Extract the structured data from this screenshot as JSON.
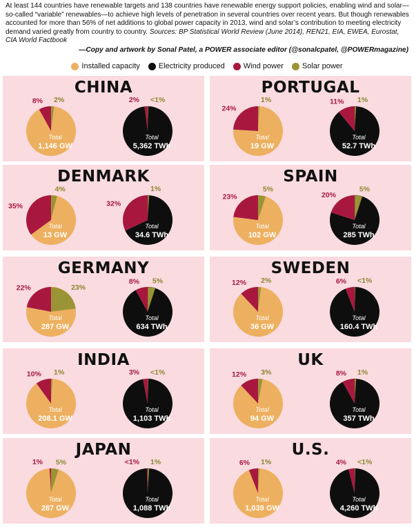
{
  "intro": {
    "text": "At least 144 countries have renewable targets and 138 countries have renewable energy support policies, enabling wind and solar—so-called “variable” renewables—to achieve high levels of penetration in several countries over recent years. But though renewables accounted for more than 56% of net additions to global power capacity in 2013, wind and solar’s contribution to meeting electricity demand varied greatly from country to country.",
    "sources": "Sources: BP Statistical World Review (June 2014), REN21, EIA, EWEA, Eurostat, CIA World Factbook",
    "credit": "—Copy and artwork by Sonal Patel, a POWER associate editor (@sonalcpatel, @POWERmagazine)"
  },
  "legend": [
    {
      "label": "Installed capacity",
      "color": "#edb060"
    },
    {
      "label": "Electricity produced",
      "color": "#0e0e0e"
    },
    {
      "label": "Wind power",
      "color": "#a8183e"
    },
    {
      "label": "Solar power",
      "color": "#9a9436"
    }
  ],
  "colors": {
    "capacity": "#edb060",
    "electricity": "#0e0e0e",
    "wind": "#a8183e",
    "solar": "#9a9436",
    "panel_bg": "#f9dbe0",
    "wind_label": "#a8183e",
    "solar_label": "#8d8730"
  },
  "total_label": "Total",
  "chart_data": [
    {
      "type": "pie",
      "title": "CHINA",
      "capacity": {
        "total": "1,146 GW",
        "wind": 8,
        "solar": 2,
        "wind_label": "8%",
        "solar_label": "2%"
      },
      "electricity": {
        "total": "5,362 TWh",
        "wind": 2,
        "solar": 0.5,
        "wind_label": "2%",
        "solar_label": "<1%"
      }
    },
    {
      "type": "pie",
      "title": "PORTUGAL",
      "capacity": {
        "total": "19 GW",
        "wind": 24,
        "solar": 1,
        "wind_label": "24%",
        "solar_label": "1%"
      },
      "electricity": {
        "total": "52.7 TWh",
        "wind": 11,
        "solar": 1,
        "wind_label": "11%",
        "solar_label": "1%"
      }
    },
    {
      "type": "pie",
      "title": "DENMARK",
      "capacity": {
        "total": "13 GW",
        "wind": 35,
        "solar": 4,
        "wind_label": "35%",
        "solar_label": "4%"
      },
      "electricity": {
        "total": "34.6 TWh",
        "wind": 32,
        "solar": 1,
        "wind_label": "32%",
        "solar_label": "1%"
      }
    },
    {
      "type": "pie",
      "title": "SPAIN",
      "capacity": {
        "total": "102 GW",
        "wind": 23,
        "solar": 5,
        "wind_label": "23%",
        "solar_label": "5%"
      },
      "electricity": {
        "total": "285 TWh",
        "wind": 20,
        "solar": 5,
        "wind_label": "20%",
        "solar_label": "5%"
      }
    },
    {
      "type": "pie",
      "title": "GERMANY",
      "capacity": {
        "total": "287 GW",
        "wind": 22,
        "solar": 23,
        "wind_label": "22%",
        "solar_label": "23%"
      },
      "electricity": {
        "total": "634 TWh",
        "wind": 8,
        "solar": 5,
        "wind_label": "8%",
        "solar_label": "5%"
      }
    },
    {
      "type": "pie",
      "title": "SWEDEN",
      "capacity": {
        "total": "36 GW",
        "wind": 12,
        "solar": 2,
        "wind_label": "12%",
        "solar_label": "2%"
      },
      "electricity": {
        "total": "160.4 TWh",
        "wind": 6,
        "solar": 0.5,
        "wind_label": "6%",
        "solar_label": "<1%"
      }
    },
    {
      "type": "pie",
      "title": "INDIA",
      "capacity": {
        "total": "208.1 GW",
        "wind": 10,
        "solar": 1,
        "wind_label": "10%",
        "solar_label": "1%"
      },
      "electricity": {
        "total": "1,103 TWh",
        "wind": 3,
        "solar": 0.5,
        "wind_label": "3%",
        "solar_label": "<1%"
      }
    },
    {
      "type": "pie",
      "title": "UK",
      "capacity": {
        "total": "94 GW",
        "wind": 12,
        "solar": 3,
        "wind_label": "12%",
        "solar_label": "3%"
      },
      "electricity": {
        "total": "357 TWh",
        "wind": 8,
        "solar": 1,
        "wind_label": "8%",
        "solar_label": "1%"
      }
    },
    {
      "type": "pie",
      "title": "JAPAN",
      "capacity": {
        "total": "287 GW",
        "wind": 1,
        "solar": 5,
        "wind_label": "1%",
        "solar_label": "5%"
      },
      "electricity": {
        "total": "1,088 TWh",
        "wind": 0.5,
        "solar": 1,
        "wind_label": "<1%",
        "solar_label": "1%"
      }
    },
    {
      "type": "pie",
      "title": "U.S.",
      "capacity": {
        "total": "1,039 GW",
        "wind": 6,
        "solar": 1,
        "wind_label": "6%",
        "solar_label": "1%"
      },
      "electricity": {
        "total": "4,260 TWh",
        "wind": 4,
        "solar": 0.5,
        "wind_label": "4%",
        "solar_label": "<1%"
      }
    }
  ]
}
